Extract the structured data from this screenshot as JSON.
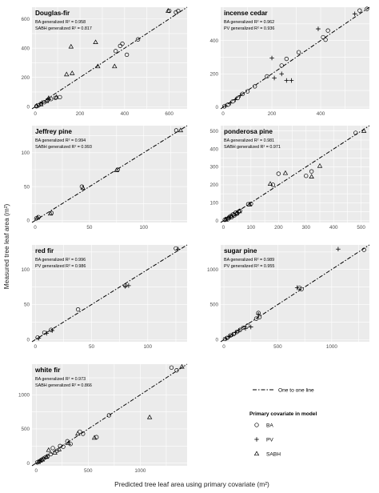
{
  "chart_data": {
    "type": "scatter",
    "xlabel": "Predicted tree leaf area using primary covariate (m²)",
    "ylabel": "Measured tree leaf area (m²)",
    "legend": {
      "line_label": "One to one line",
      "title": "Primary covariate in model",
      "entries": [
        {
          "name": "BA",
          "shape": "circle"
        },
        {
          "name": "PV",
          "shape": "plus"
        },
        {
          "name": "SABH",
          "shape": "triangle"
        }
      ]
    },
    "panels": [
      {
        "title": "Douglas-fir",
        "annotations": [
          "BA generalized R² = 0.958",
          "SABH generalized R² = 0.817"
        ],
        "xlim": [
          -15,
          680
        ],
        "ylim": [
          -15,
          680
        ],
        "xticks": [
          0,
          200,
          400,
          600
        ],
        "yticks": [
          0,
          200,
          400,
          600
        ],
        "series": [
          {
            "name": "BA",
            "points": [
              [
                5,
                3
              ],
              [
                15,
                10
              ],
              [
                25,
                20
              ],
              [
                40,
                30
              ],
              [
                55,
                45
              ],
              [
                70,
                52
              ],
              [
                90,
                60
              ],
              [
                110,
                65
              ],
              [
                360,
                380
              ],
              [
                380,
                415
              ],
              [
                390,
                430
              ],
              [
                410,
                355
              ],
              [
                460,
                460
              ],
              [
                600,
                655
              ],
              [
                630,
                645
              ],
              [
                640,
                655
              ]
            ]
          },
          {
            "name": "PV",
            "points": [
              [
                30,
                28
              ],
              [
                60,
                50
              ]
            ]
          },
          {
            "name": "SABH",
            "points": [
              [
                5,
                5
              ],
              [
                25,
                15
              ],
              [
                50,
                38
              ],
              [
                60,
                58
              ],
              [
                95,
                65
              ],
              [
                160,
                410
              ],
              [
                140,
                220
              ],
              [
                165,
                228
              ],
              [
                270,
                440
              ],
              [
                280,
                275
              ],
              [
                355,
                275
              ],
              [
                595,
                655
              ]
            ]
          }
        ]
      },
      {
        "title": "incense cedar",
        "annotations": [
          "BA generalized R² = 0.962",
          "PV generalized R² = 0.936"
        ],
        "xlim": [
          -10,
          600
        ],
        "ylim": [
          -10,
          600
        ],
        "xticks": [
          0,
          200,
          400
        ],
        "yticks": [
          0,
          200,
          400
        ],
        "series": [
          {
            "name": "BA",
            "points": [
              [
                5,
                5
              ],
              [
                20,
                15
              ],
              [
                40,
                35
              ],
              [
                60,
                55
              ],
              [
                80,
                80
              ],
              [
                100,
                95
              ],
              [
                130,
                125
              ],
              [
                180,
                185
              ],
              [
                240,
                250
              ],
              [
                260,
                290
              ],
              [
                310,
                330
              ],
              [
                410,
                420
              ],
              [
                420,
                405
              ],
              [
                430,
                460
              ],
              [
                560,
                580
              ],
              [
                590,
                590
              ]
            ]
          },
          {
            "name": "PV",
            "points": [
              [
                10,
                8
              ],
              [
                30,
                25
              ],
              [
                50,
                45
              ],
              [
                70,
                70
              ],
              [
                200,
                295
              ],
              [
                210,
                175
              ],
              [
                240,
                200
              ],
              [
                260,
                160
              ],
              [
                280,
                160
              ],
              [
                390,
                470
              ],
              [
                540,
                560
              ]
            ]
          }
        ]
      },
      {
        "title": "Jeffrey pine",
        "annotations": [
          "BA generalized R² = 0.994",
          "SABH generalized R² = 0.993"
        ],
        "xlim": [
          -3,
          140
        ],
        "ylim": [
          -3,
          140
        ],
        "xticks": [
          0,
          50,
          100
        ],
        "yticks": [
          0,
          50,
          100
        ],
        "series": [
          {
            "name": "BA",
            "points": [
              [
                1,
                3
              ],
              [
                3,
                5
              ],
              [
                15,
                11
              ],
              [
                43,
                50
              ],
              [
                76,
                75
              ],
              [
                130,
                133
              ]
            ]
          },
          {
            "name": "SABH",
            "points": [
              [
                2,
                4
              ],
              [
                14,
                10
              ],
              [
                44,
                48
              ],
              [
                75,
                74
              ],
              [
                134,
                133
              ]
            ]
          }
        ]
      },
      {
        "title": "ponderosa pine",
        "annotations": [
          "BA generalized R² = 0.981",
          "SABH generalized R² = 0.971"
        ],
        "xlim": [
          -10,
          530
        ],
        "ylim": [
          -10,
          530
        ],
        "xticks": [
          0,
          100,
          200,
          300,
          400,
          500
        ],
        "yticks": [
          0,
          100,
          200,
          300,
          400,
          500
        ],
        "series": [
          {
            "name": "BA",
            "points": [
              [
                5,
                5
              ],
              [
                10,
                10
              ],
              [
                15,
                8
              ],
              [
                20,
                18
              ],
              [
                25,
                25
              ],
              [
                30,
                20
              ],
              [
                35,
                35
              ],
              [
                40,
                30
              ],
              [
                45,
                45
              ],
              [
                50,
                40
              ],
              [
                55,
                50
              ],
              [
                60,
                55
              ],
              [
                90,
                92
              ],
              [
                100,
                95
              ],
              [
                180,
                200
              ],
              [
                200,
                262
              ],
              [
                300,
                250
              ],
              [
                320,
                275
              ],
              [
                480,
                490
              ]
            ]
          },
          {
            "name": "SABH",
            "points": [
              [
                8,
                6
              ],
              [
                18,
                15
              ],
              [
                28,
                26
              ],
              [
                38,
                35
              ],
              [
                48,
                42
              ],
              [
                58,
                52
              ],
              [
                95,
                90
              ],
              [
                170,
                205
              ],
              [
                225,
                265
              ],
              [
                320,
                245
              ],
              [
                350,
                305
              ],
              [
                510,
                500
              ]
            ]
          }
        ]
      },
      {
        "title": "red fir",
        "annotations": [
          "BA generalized R² = 0.996",
          "PV generalized R² = 0.986"
        ],
        "xlim": [
          -3,
          135
        ],
        "ylim": [
          -3,
          135
        ],
        "xticks": [
          0,
          50,
          100
        ],
        "yticks": [
          0,
          50,
          100
        ],
        "series": [
          {
            "name": "BA",
            "points": [
              [
                2,
                3
              ],
              [
                8,
                10
              ],
              [
                14,
                14
              ],
              [
                38,
                43
              ],
              [
                80,
                77
              ],
              [
                125,
                130
              ]
            ]
          },
          {
            "name": "PV",
            "points": [
              [
                3,
                2
              ],
              [
                10,
                9
              ],
              [
                15,
                13
              ],
              [
                80,
                76
              ],
              [
                83,
                77
              ],
              [
                127,
                129
              ]
            ]
          }
        ]
      },
      {
        "title": "sugar pine",
        "annotations": [
          "BA generalized R² = 0.989",
          "PV generalized R² = 0.955"
        ],
        "xlim": [
          -30,
          1350
        ],
        "ylim": [
          -30,
          1350
        ],
        "xticks": [
          0,
          500,
          1000
        ],
        "yticks": [
          0,
          500,
          1000
        ],
        "series": [
          {
            "name": "BA",
            "points": [
              [
                10,
                10
              ],
              [
                30,
                25
              ],
              [
                60,
                60
              ],
              [
                90,
                80
              ],
              [
                120,
                110
              ],
              [
                150,
                140
              ],
              [
                180,
                170
              ],
              [
                220,
                200
              ],
              [
                300,
                300
              ],
              [
                320,
                380
              ],
              [
                330,
                320
              ],
              [
                700,
                740
              ],
              [
                720,
                720
              ],
              [
                1300,
                1280
              ]
            ]
          },
          {
            "name": "PV",
            "points": [
              [
                20,
                15
              ],
              [
                50,
                45
              ],
              [
                80,
                70
              ],
              [
                110,
                100
              ],
              [
                140,
                130
              ],
              [
                200,
                160
              ],
              [
                250,
                180
              ],
              [
                320,
                360
              ],
              [
                680,
                740
              ],
              [
                1060,
                1290
              ]
            ]
          }
        ]
      },
      {
        "title": "white fir",
        "annotations": [
          "BA generalized R² = 0.973",
          "SABH generalized R² = 0.866"
        ],
        "xlim": [
          -40,
          1450
        ],
        "ylim": [
          -40,
          1450
        ],
        "xticks": [
          0,
          500,
          1000
        ],
        "yticks": [
          0,
          500,
          1000
        ],
        "series": [
          {
            "name": "BA",
            "points": [
              [
                10,
                10
              ],
              [
                30,
                25
              ],
              [
                50,
                45
              ],
              [
                70,
                65
              ],
              [
                90,
                85
              ],
              [
                110,
                100
              ],
              [
                140,
                130
              ],
              [
                160,
                220
              ],
              [
                200,
                180
              ],
              [
                230,
                250
              ],
              [
                260,
                240
              ],
              [
                300,
                320
              ],
              [
                330,
                280
              ],
              [
                420,
                460
              ],
              [
                450,
                430
              ],
              [
                580,
                380
              ],
              [
                700,
                700
              ],
              [
                1300,
                1400
              ],
              [
                1350,
                1360
              ]
            ]
          },
          {
            "name": "SABH",
            "points": [
              [
                20,
                15
              ],
              [
                40,
                35
              ],
              [
                60,
                50
              ],
              [
                100,
                90
              ],
              [
                120,
                190
              ],
              [
                180,
                150
              ],
              [
                220,
                200
              ],
              [
                310,
                290
              ],
              [
                400,
                430
              ],
              [
                560,
                370
              ],
              [
                1090,
                670
              ],
              [
                1400,
                1410
              ]
            ]
          }
        ]
      }
    ]
  }
}
